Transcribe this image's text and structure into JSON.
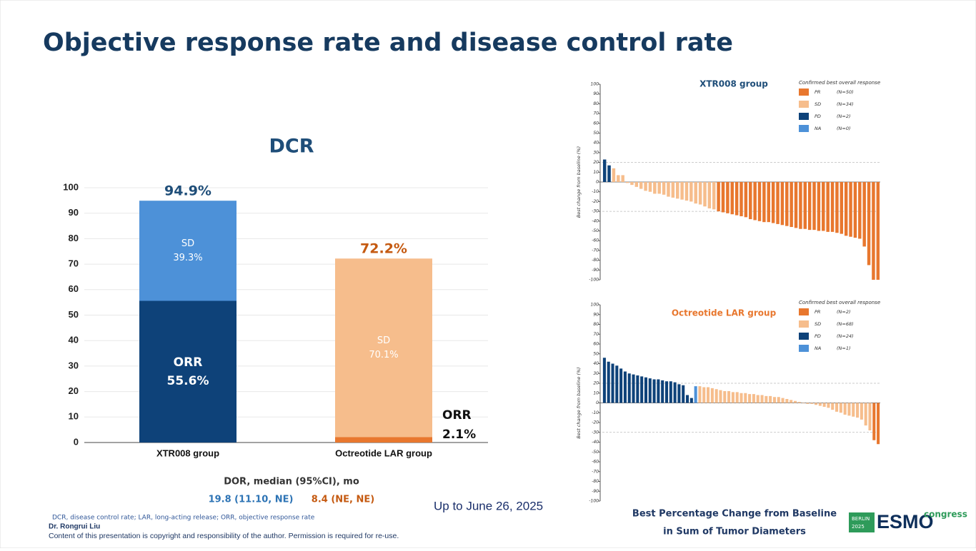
{
  "title": "Objective response rate and disease control rate",
  "chart_data": [
    {
      "type": "stacked_bar",
      "title": "DCR",
      "categories": [
        "XTR008 group",
        "Octreotide LAR group"
      ],
      "series": [
        {
          "name": "ORR",
          "colors": [
            "#0e4279",
            "#e8772e"
          ],
          "values": [
            55.6,
            2.1
          ],
          "value_labels": [
            "55.6%",
            "2.1%"
          ]
        },
        {
          "name": "SD",
          "colors": [
            "#4d91d8",
            "#f6bd8c"
          ],
          "values": [
            39.3,
            70.1
          ],
          "value_labels": [
            "39.3%",
            "70.1%"
          ]
        }
      ],
      "totals": [
        94.9,
        72.2
      ],
      "total_labels": [
        "94.9%",
        "72.2%"
      ],
      "total_colors": [
        "#1f4e79",
        "#c55a11"
      ],
      "ylim": [
        0,
        100
      ],
      "yticks": [
        0,
        10,
        20,
        30,
        40,
        50,
        60,
        70,
        80,
        90,
        100
      ],
      "grid": true
    },
    {
      "type": "waterfall",
      "title": "XTR008 group",
      "title_color": "#1f4e79",
      "y_label": "Best change from baseline (%)",
      "legend_title": "Confirmed best overall response",
      "ylim": [
        -100,
        100
      ],
      "yticks": [
        -100,
        -90,
        -80,
        -70,
        -60,
        -50,
        -40,
        -30,
        -20,
        -10,
        0,
        10,
        20,
        30,
        40,
        50,
        60,
        70,
        80,
        90,
        100
      ],
      "reference_lines": [
        20,
        -30
      ],
      "series": [
        {
          "name": "PR",
          "n_label": "(N=50)",
          "color": "#e8772e",
          "values": [
            -30,
            -31,
            -32,
            -33,
            -34,
            -35,
            -36,
            -38,
            -39,
            -40,
            -41,
            -41,
            -42,
            -43,
            -44,
            -45,
            -46,
            -47,
            -48,
            -48,
            -49,
            -49,
            -50,
            -50,
            -51,
            -51,
            -52,
            -53,
            -55,
            -56,
            -57,
            -58,
            -66,
            -85,
            -100,
            -100
          ]
        },
        {
          "name": "SD",
          "n_label": "(N=34)",
          "color": "#f6bd8c",
          "values": [
            14,
            7,
            7,
            -1,
            -3,
            -5,
            -7,
            -9,
            -10,
            -12,
            -12,
            -13,
            -15,
            -16,
            -17,
            -18,
            -19,
            -20,
            -22,
            -23,
            -25,
            -27,
            -28
          ]
        },
        {
          "name": "PD",
          "n_label": "(N=2)",
          "color": "#0e4279",
          "values": [
            23,
            17
          ]
        },
        {
          "name": "NA",
          "n_label": "(N=0)",
          "color": "#4d91d8",
          "values": []
        }
      ]
    },
    {
      "type": "waterfall",
      "title": "Octreotide LAR group",
      "title_color": "#e8772e",
      "y_label": "Best change from baseline (%)",
      "legend_title": "Confirmed best overall response",
      "ylim": [
        -100,
        100
      ],
      "yticks": [
        -100,
        -90,
        -80,
        -70,
        -60,
        -50,
        -40,
        -30,
        -20,
        -10,
        0,
        10,
        20,
        30,
        40,
        50,
        60,
        70,
        80,
        90,
        100
      ],
      "reference_lines": [
        20,
        -30
      ],
      "series": [
        {
          "name": "PR",
          "n_label": "(N=2)",
          "color": "#e8772e",
          "values": [
            -38,
            -42
          ]
        },
        {
          "name": "SD",
          "n_label": "(N=68)",
          "color": "#f6bd8c",
          "values": [
            17,
            16,
            16,
            15,
            14,
            13,
            12,
            12,
            11,
            11,
            10,
            10,
            9,
            9,
            8,
            8,
            7,
            7,
            6,
            6,
            5,
            4,
            3,
            2,
            1,
            0,
            -1,
            -1,
            -2,
            -3,
            -4,
            -5,
            -7,
            -9,
            -10,
            -12,
            -13,
            -14,
            -15,
            -17,
            -23,
            -28
          ]
        },
        {
          "name": "PD",
          "n_label": "(N=24)",
          "color": "#0e4279",
          "values": [
            46,
            42,
            40,
            38,
            35,
            32,
            30,
            29,
            28,
            27,
            26,
            25,
            24,
            24,
            23,
            22,
            22,
            21,
            19,
            18,
            8,
            5
          ]
        },
        {
          "name": "NA",
          "n_label": "(N=1)",
          "color": "#4d91d8",
          "values": [
            17
          ]
        }
      ]
    }
  ],
  "dor": {
    "label": "DOR, median (95%CI), mo",
    "values": [
      "19.8 (11.10, NE)",
      "8.4 (NE, NE)"
    ]
  },
  "date_note": "Up to June 26, 2025",
  "caption": [
    "Best Percentage Change from Baseline",
    "in Sum of Tumor Diameters"
  ],
  "footnote": "DCR, disease control rate; LAR, long-acting release; ORR, objective response rate",
  "author": "Dr. Rongrui Liu",
  "copyright": "Content of this presentation is copyright and responsibility of the author. Permission is required for re-use.",
  "logo": {
    "city": "BERLIN",
    "year": "2025",
    "brand": "ESMO",
    "suffix": "congress"
  }
}
